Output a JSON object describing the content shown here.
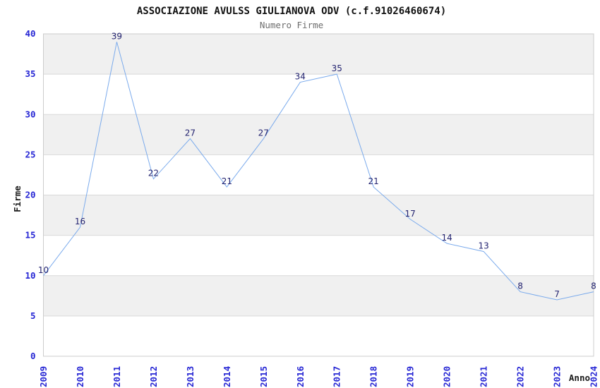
{
  "chart_data": {
    "type": "line",
    "title": "ASSOCIAZIONE AVULSS GIULIANOVA ODV (c.f.91026460674)",
    "subtitle": "Numero Firme",
    "xlabel": "Anno",
    "ylabel": "Firme",
    "categories": [
      "2009",
      "2010",
      "2011",
      "2012",
      "2013",
      "2014",
      "2015",
      "2016",
      "2017",
      "2018",
      "2019",
      "2020",
      "2021",
      "2022",
      "2023",
      "2024"
    ],
    "series": [
      {
        "name": "Numero Firme",
        "values": [
          10,
          16,
          39,
          22,
          27,
          21,
          27,
          34,
          35,
          21,
          17,
          14,
          13,
          8,
          7,
          8
        ]
      }
    ],
    "ylim": [
      0,
      40
    ],
    "ytick_step": 5,
    "legend": "none",
    "grid": "horizontal-bands-alternating",
    "data_labels": "above-points",
    "colors": {
      "line": "#7aaaec",
      "tick_label": "#2626d4",
      "data_label": "#232370",
      "band": "#f0f0f0",
      "gridline": "#d9d9d9",
      "border": "#cccccc",
      "title": "#111111",
      "subtitle": "#6e6e6e",
      "axis_title": "#1a1a1a",
      "background": "#ffffff"
    }
  }
}
